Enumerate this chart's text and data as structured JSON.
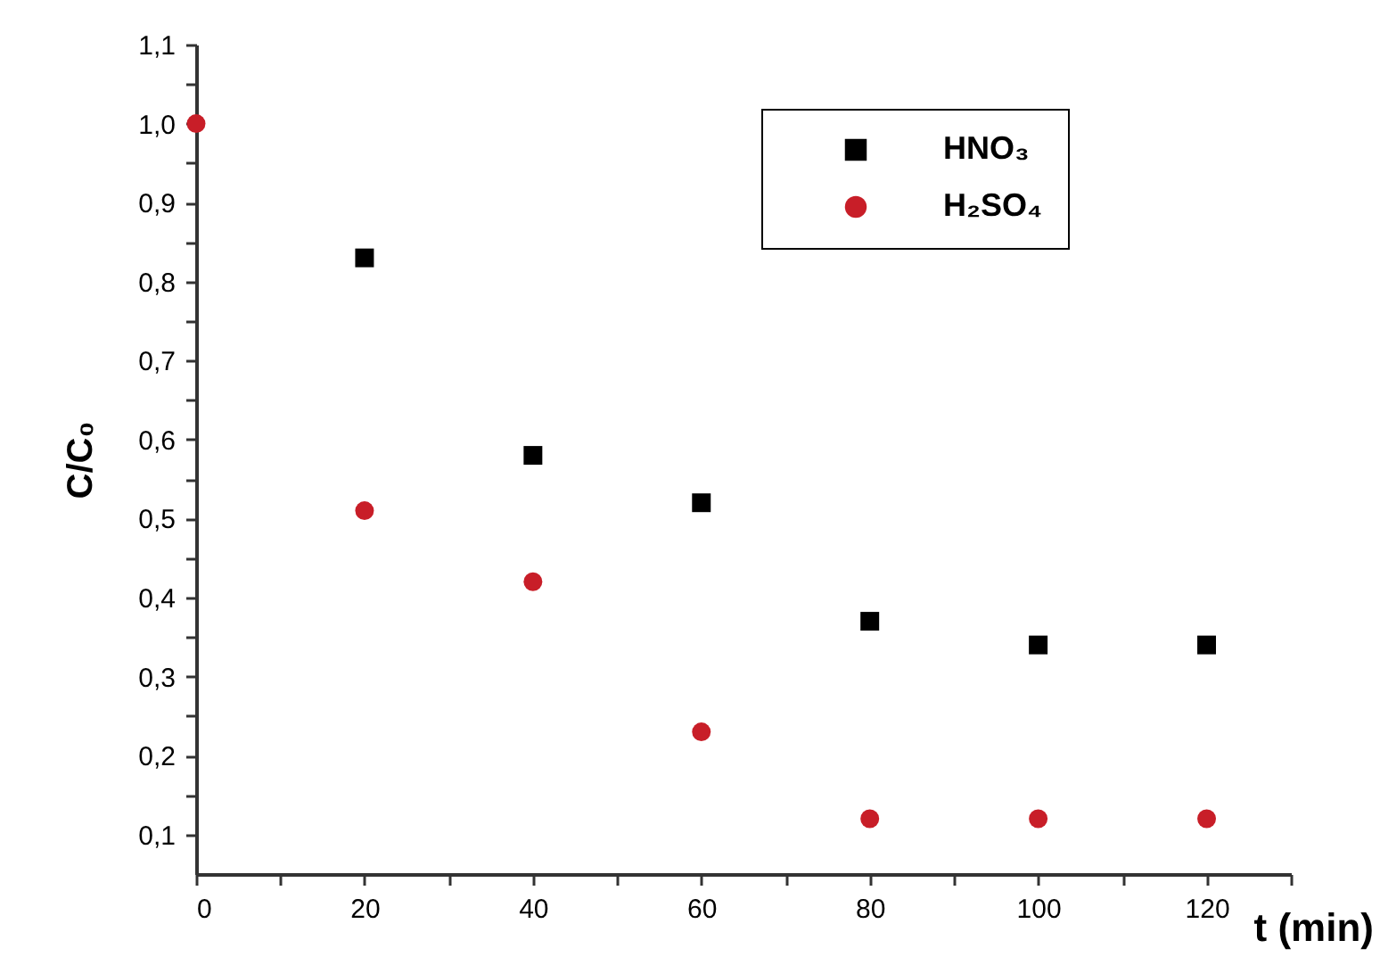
{
  "chart_data": {
    "type": "scatter",
    "xlabel": "t (min)",
    "ylabel": "C/C₀",
    "x": [
      0,
      20,
      40,
      60,
      80,
      100,
      120
    ],
    "series": [
      {
        "name": "HNO₃",
        "color": "#000000",
        "marker": "square",
        "values": [
          null,
          0.83,
          0.58,
          0.52,
          0.37,
          0.34,
          0.34
        ]
      },
      {
        "name": "H₂SO₄",
        "color": "#c81e28",
        "marker": "circle",
        "values": [
          1.0,
          0.51,
          0.42,
          0.23,
          0.12,
          0.12,
          0.12
        ]
      }
    ],
    "xlim": [
      0,
      130
    ],
    "xticks": [
      0,
      {
        "value": 10,
        "label": null
      },
      20,
      {
        "value": 30,
        "label": null
      },
      40,
      {
        "value": 50,
        "label": null
      },
      60,
      {
        "value": 70,
        "label": null
      },
      80,
      {
        "value": 90,
        "label": null
      },
      100,
      {
        "value": 110,
        "label": null
      },
      120,
      {
        "value": 130,
        "label": null
      }
    ],
    "ylim": [
      0.05,
      1.1
    ],
    "yticks": [
      {
        "value": 0.1,
        "label": "0,1"
      },
      {
        "value": 0.15,
        "label": null
      },
      {
        "value": 0.2,
        "label": "0,2"
      },
      {
        "value": 0.25,
        "label": null
      },
      {
        "value": 0.3,
        "label": "0,3"
      },
      {
        "value": 0.35,
        "label": null
      },
      {
        "value": 0.4,
        "label": "0,4"
      },
      {
        "value": 0.45,
        "label": null
      },
      {
        "value": 0.5,
        "label": "0,5"
      },
      {
        "value": 0.55,
        "label": null
      },
      {
        "value": 0.6,
        "label": "0,6"
      },
      {
        "value": 0.65,
        "label": null
      },
      {
        "value": 0.7,
        "label": "0,7"
      },
      {
        "value": 0.75,
        "label": null
      },
      {
        "value": 0.8,
        "label": "0,8"
      },
      {
        "value": 0.85,
        "label": null
      },
      {
        "value": 0.9,
        "label": "0,9"
      },
      {
        "value": 0.95,
        "label": null
      },
      {
        "value": 1.0,
        "label": "1,0"
      },
      {
        "value": 1.05,
        "label": null
      },
      {
        "value": 1.1,
        "label": "1,1"
      }
    ],
    "legend": "top right",
    "grid": false
  }
}
